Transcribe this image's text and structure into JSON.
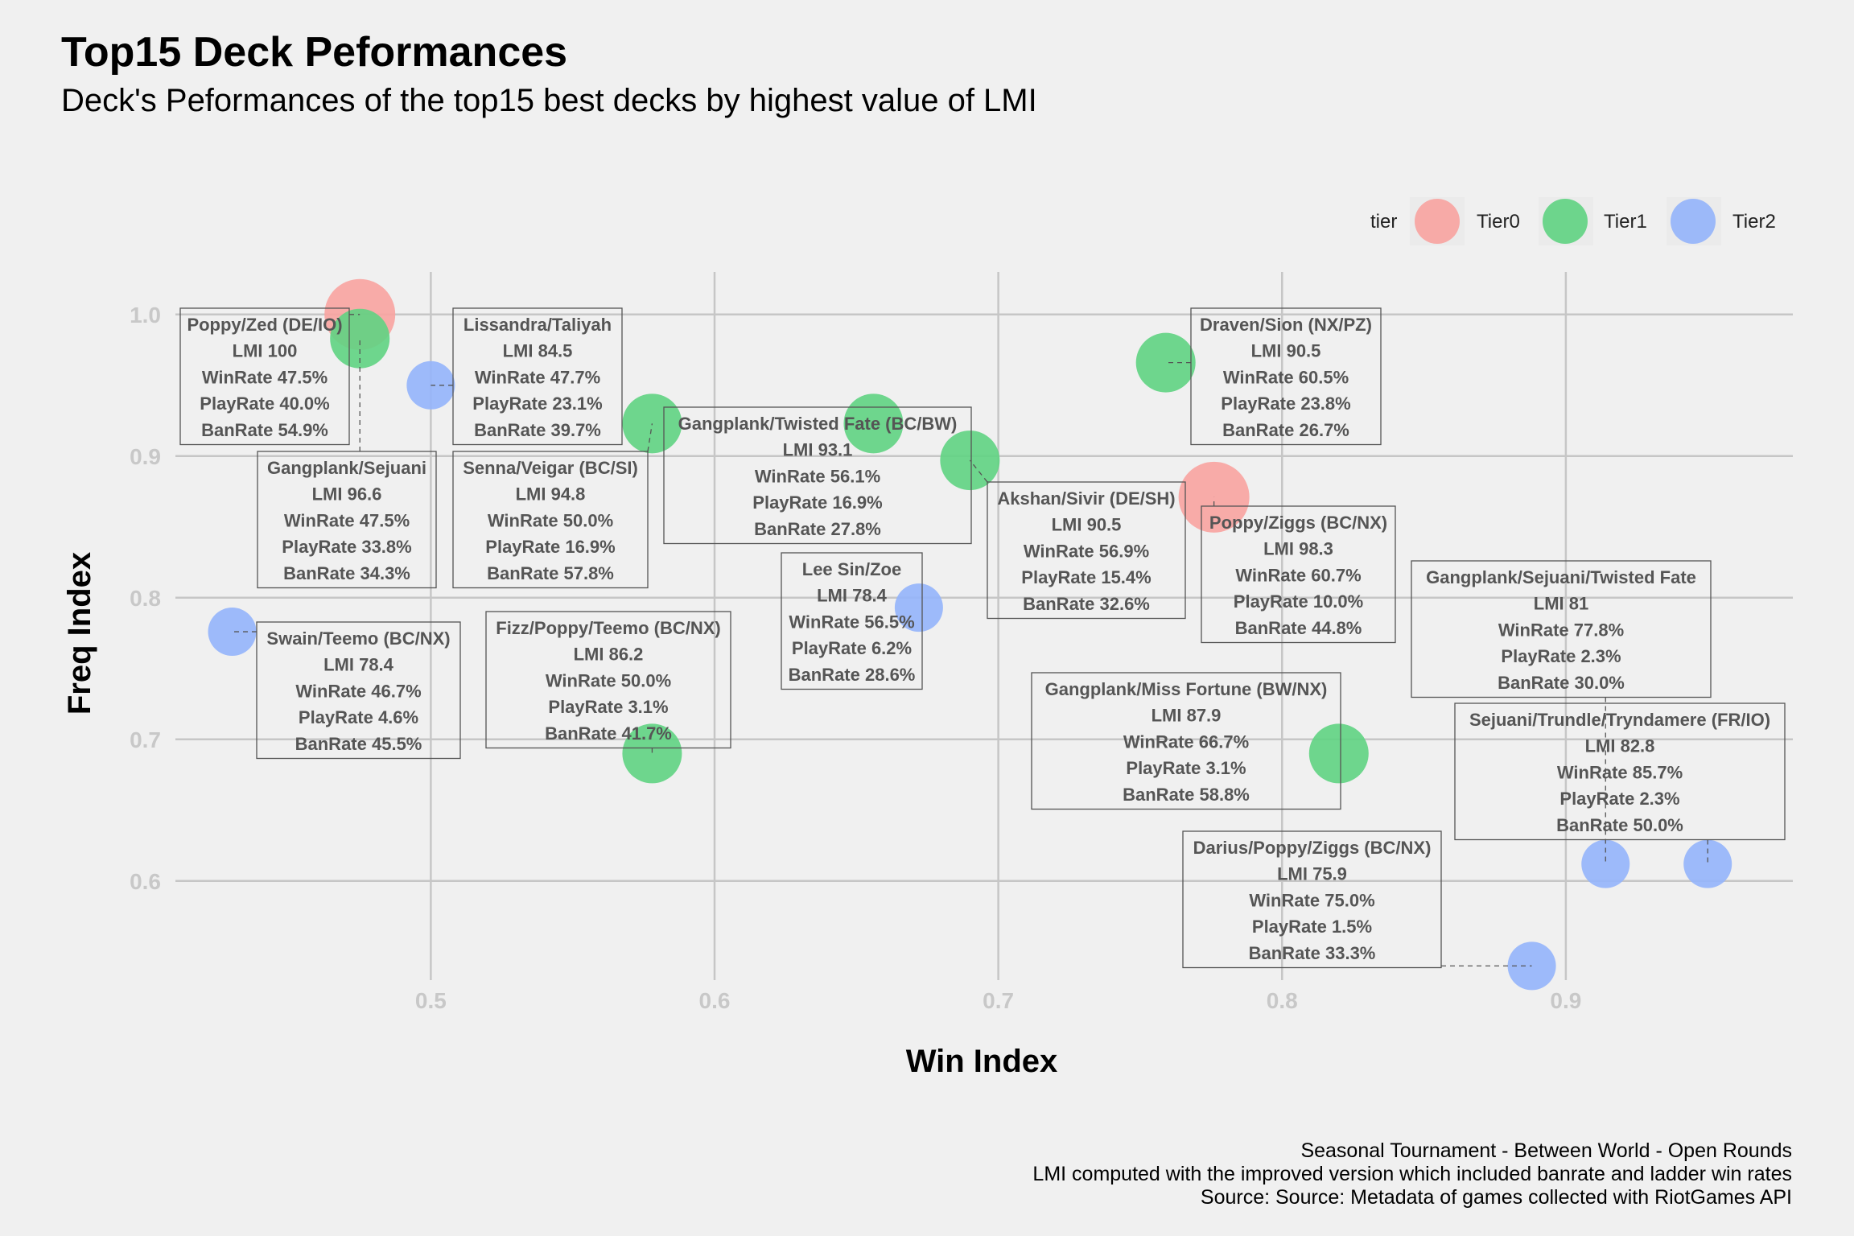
{
  "title": "Top15 Deck Peformances",
  "subtitle": "Deck's Peformances of the top15 best decks by highest value of LMI",
  "caption": [
    "Seasonal Tournament - Between World - Open Rounds",
    "LMI computed with the improved version which included banrate and ladder win rates",
    "Source: Source: Metadata of games collected with RiotGames API"
  ],
  "legend": {
    "title": "tier",
    "items": [
      {
        "name": "Tier0",
        "color": "#F8A3A0"
      },
      {
        "name": "Tier1",
        "color": "#5FD382"
      },
      {
        "name": "Tier2",
        "color": "#94B4FB"
      }
    ]
  },
  "chart_data": {
    "type": "scatter",
    "xlabel": "Win Index",
    "ylabel": "Freq Index",
    "xlim": [
      0.41,
      0.98
    ],
    "ylim": [
      0.53,
      1.03
    ],
    "xticks": [
      {
        "value": 0.5,
        "label": "0.5"
      },
      {
        "value": 0.6,
        "label": "0.6"
      },
      {
        "value": 0.7,
        "label": "0.7"
      },
      {
        "value": 0.8,
        "label": "0.8"
      },
      {
        "value": 0.9,
        "label": "0.9"
      }
    ],
    "yticks": [
      {
        "value": 0.6,
        "label": "0.6"
      },
      {
        "value": 0.7,
        "label": "0.7"
      },
      {
        "value": 0.8,
        "label": "0.8"
      },
      {
        "value": 0.9,
        "label": "0.9"
      },
      {
        "value": 1.0,
        "label": "1.0"
      }
    ],
    "grid": true,
    "legend_position": "top-right",
    "points": [
      {
        "deck": "Poppy/Zed (DE/IO)",
        "tier": "Tier0",
        "x": 0.475,
        "y": 1.0,
        "lines": [
          "Poppy/Zed (DE/IO)",
          "LMI 100",
          "WinRate 47.5%",
          "PlayRate 40.0%",
          "BanRate 54.9%"
        ]
      },
      {
        "deck": "Gangplank/Sejuani",
        "tier": "Tier1",
        "x": 0.475,
        "y": 0.983,
        "lines": [
          "Gangplank/Sejuani",
          "LMI 96.6",
          "WinRate 47.5%",
          "PlayRate 33.8%",
          "BanRate 34.3%"
        ]
      },
      {
        "deck": "Lissandra/Taliyah",
        "tier": "Tier2",
        "x": 0.5,
        "y": 0.95,
        "lines": [
          "Lissandra/Taliyah",
          "LMI 84.5",
          "WinRate 47.7%",
          "PlayRate 23.1%",
          "BanRate 39.7%"
        ]
      },
      {
        "deck": "Senna/Veigar (BC/SI)",
        "tier": "Tier1",
        "x": 0.578,
        "y": 0.923,
        "lines": [
          "Senna/Veigar (BC/SI)",
          "LMI 94.8",
          "WinRate 50.0%",
          "PlayRate 16.9%",
          "BanRate 57.8%"
        ]
      },
      {
        "deck": "Gangplank/Twisted Fate (BC/BW)",
        "tier": "Tier1",
        "x": 0.656,
        "y": 0.923,
        "lines": [
          "Gangplank/Twisted Fate (BC/BW)",
          "LMI 93.1",
          "WinRate 56.1%",
          "PlayRate 16.9%",
          "BanRate 27.8%"
        ]
      },
      {
        "deck": "Akshan/Sivir (DE/SH)",
        "tier": "Tier1",
        "x": 0.69,
        "y": 0.897,
        "lines": [
          "Akshan/Sivir (DE/SH)",
          "LMI 90.5",
          "WinRate 56.9%",
          "PlayRate 15.4%",
          "BanRate 32.6%"
        ]
      },
      {
        "deck": "Draven/Sion (NX/PZ)",
        "tier": "Tier1",
        "x": 0.759,
        "y": 0.966,
        "lines": [
          "Draven/Sion (NX/PZ)",
          "LMI 90.5",
          "WinRate 60.5%",
          "PlayRate 23.8%",
          "BanRate 26.7%"
        ]
      },
      {
        "deck": "Poppy/Ziggs (BC/NX)",
        "tier": "Tier0",
        "x": 0.776,
        "y": 0.871,
        "lines": [
          "Poppy/Ziggs (BC/NX)",
          "LMI 98.3",
          "WinRate 60.7%",
          "PlayRate 10.0%",
          "BanRate 44.8%"
        ]
      },
      {
        "deck": "Swain/Teemo (BC/NX)",
        "tier": "Tier2",
        "x": 0.43,
        "y": 0.776,
        "lines": [
          "Swain/Teemo (BC/NX)",
          "LMI 78.4",
          "WinRate 46.7%",
          "PlayRate 4.6%",
          "BanRate 45.5%"
        ]
      },
      {
        "deck": "Lee Sin/Zoe",
        "tier": "Tier2",
        "x": 0.672,
        "y": 0.793,
        "lines": [
          "Lee Sin/Zoe",
          "LMI 78.4",
          "WinRate 56.5%",
          "PlayRate 6.2%",
          "BanRate 28.6%"
        ]
      },
      {
        "deck": "Fizz/Poppy/Teemo (BC/NX)",
        "tier": "Tier1",
        "x": 0.578,
        "y": 0.69,
        "lines": [
          "Fizz/Poppy/Teemo (BC/NX)",
          "LMI 86.2",
          "WinRate 50.0%",
          "PlayRate 3.1%",
          "BanRate 41.7%"
        ]
      },
      {
        "deck": "Gangplank/Miss Fortune (BW/NX)",
        "tier": "Tier1",
        "x": 0.82,
        "y": 0.69,
        "lines": [
          "Gangplank/Miss Fortune (BW/NX)",
          "LMI 87.9",
          "WinRate 66.7%",
          "PlayRate 3.1%",
          "BanRate 58.8%"
        ]
      },
      {
        "deck": "Gangplank/Sejuani/Twisted Fate",
        "tier": "Tier2",
        "x": 0.914,
        "y": 0.612,
        "lines": [
          "Gangplank/Sejuani/Twisted Fate",
          "LMI 81",
          "WinRate 77.8%",
          "PlayRate 2.3%",
          "BanRate 30.0%"
        ]
      },
      {
        "deck": "Sejuani/Trundle/Tryndamere (FR/IO)",
        "tier": "Tier2",
        "x": 0.95,
        "y": 0.612,
        "lines": [
          "Sejuani/Trundle/Tryndamere (FR/IO)",
          "LMI 82.8",
          "WinRate 85.7%",
          "PlayRate 2.3%",
          "BanRate 50.0%"
        ]
      },
      {
        "deck": "Darius/Poppy/Ziggs (BC/NX)",
        "tier": "Tier2",
        "x": 0.888,
        "y": 0.54,
        "lines": [
          "Darius/Poppy/Ziggs (BC/NX)",
          "LMI 75.9",
          "WinRate 75.0%",
          "PlayRate 1.5%",
          "BanRate 33.3%"
        ]
      }
    ]
  }
}
